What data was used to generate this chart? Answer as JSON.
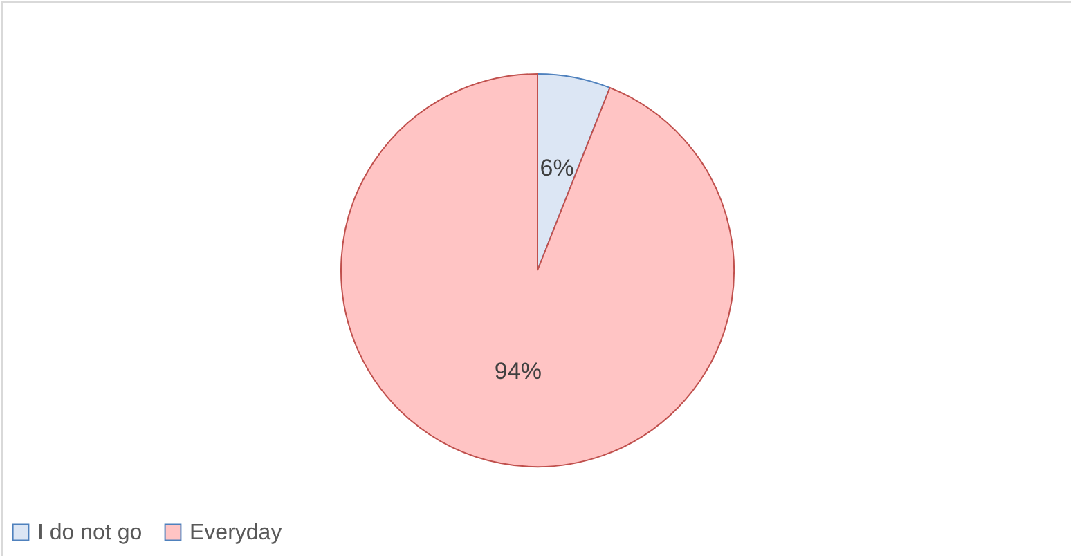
{
  "chart_data": {
    "type": "pie",
    "categories": [
      "I do not go",
      "Everyday"
    ],
    "values": [
      6,
      94
    ],
    "colors": [
      "#dce6f4",
      "#ffc4c4"
    ],
    "value_labels": [
      "6%",
      "94%"
    ],
    "legend": "bottom"
  }
}
